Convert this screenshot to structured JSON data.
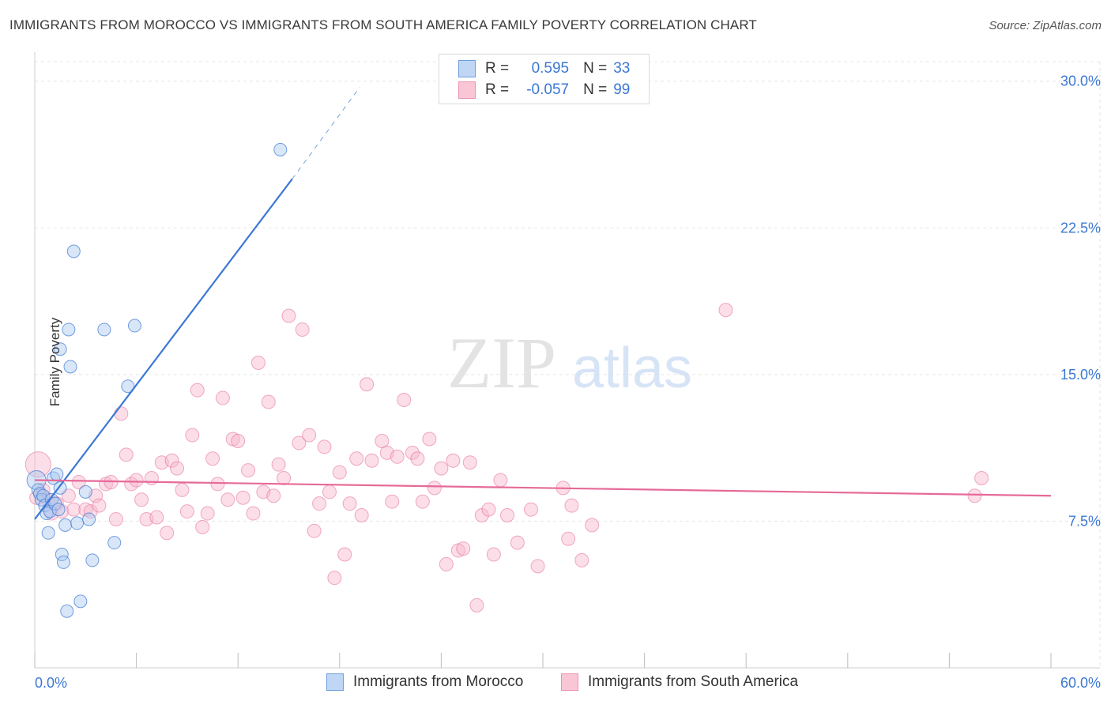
{
  "title": "IMMIGRANTS FROM MOROCCO VS IMMIGRANTS FROM SOUTH AMERICA FAMILY POVERTY CORRELATION CHART",
  "source": "Source: ZipAtlas.com",
  "watermark": {
    "zip": "ZIP",
    "atlas": "atlas"
  },
  "legend": {
    "r_label": "R =",
    "n_label": "N =",
    "morocco": {
      "r": "0.595",
      "n": "33"
    },
    "south_america": {
      "r": "-0.057",
      "n": "99"
    }
  },
  "chart_data": {
    "type": "scatter",
    "title": "IMMIGRANTS FROM MOROCCO VS IMMIGRANTS FROM SOUTH AMERICA FAMILY POVERTY CORRELATION CHART",
    "xlabel": "",
    "ylabel": "Family Poverty",
    "xlim": [
      0,
      60
    ],
    "ylim": [
      0,
      31
    ],
    "x_tick_labels": [
      "0.0%",
      "60.0%"
    ],
    "y_ticks": [
      7.5,
      15.0,
      22.5,
      30.0
    ],
    "y_tick_labels": [
      "7.5%",
      "15.0%",
      "22.5%",
      "30.0%"
    ],
    "grid": true,
    "legend_position": "bottom",
    "colors": {
      "morocco": "#3b78d4",
      "morocco_fill": "#a9c8f0",
      "south_america": "#e66a98",
      "south_america_fill": "#f7b6cb"
    },
    "series": [
      {
        "name": "Immigrants from Morocco",
        "trend": {
          "x": [
            0,
            15.2
          ],
          "y": [
            7.6,
            25.0
          ],
          "dashed_to": [
            19.2,
            29.7
          ]
        },
        "points": [
          [
            0.1,
            9.6
          ],
          [
            0.2,
            9.1
          ],
          [
            0.3,
            8.9
          ],
          [
            0.4,
            8.6
          ],
          [
            0.5,
            8.8
          ],
          [
            0.6,
            8.3
          ],
          [
            0.7,
            7.9
          ],
          [
            0.8,
            6.9
          ],
          [
            0.9,
            8.0
          ],
          [
            1.0,
            8.6
          ],
          [
            1.1,
            9.7
          ],
          [
            1.2,
            8.4
          ],
          [
            1.3,
            9.9
          ],
          [
            1.4,
            8.1
          ],
          [
            1.5,
            9.2
          ],
          [
            1.6,
            5.8
          ],
          [
            1.7,
            5.4
          ],
          [
            1.8,
            7.3
          ],
          [
            1.9,
            2.9
          ],
          [
            2.0,
            17.3
          ],
          [
            2.1,
            15.4
          ],
          [
            2.3,
            21.3
          ],
          [
            2.5,
            7.4
          ],
          [
            2.7,
            3.4
          ],
          [
            3.0,
            9.0
          ],
          [
            3.2,
            7.6
          ],
          [
            3.4,
            5.5
          ],
          [
            4.1,
            17.3
          ],
          [
            4.7,
            6.4
          ],
          [
            5.5,
            14.4
          ],
          [
            5.9,
            17.5
          ],
          [
            1.5,
            16.3
          ],
          [
            14.5,
            26.5
          ]
        ]
      },
      {
        "name": "Immigrants from South America",
        "trend": {
          "x": [
            0,
            60
          ],
          "y": [
            9.6,
            8.8
          ]
        },
        "points": [
          [
            0.2,
            10.4
          ],
          [
            0.5,
            9.1
          ],
          [
            0.8,
            8.6
          ],
          [
            1.0,
            7.9
          ],
          [
            1.3,
            8.4
          ],
          [
            1.6,
            8.0
          ],
          [
            2.0,
            8.8
          ],
          [
            2.3,
            8.1
          ],
          [
            2.6,
            9.5
          ],
          [
            3.0,
            8.1
          ],
          [
            3.3,
            8.0
          ],
          [
            3.6,
            8.8
          ],
          [
            3.8,
            8.3
          ],
          [
            4.2,
            9.4
          ],
          [
            4.5,
            9.5
          ],
          [
            4.8,
            7.6
          ],
          [
            5.1,
            13.0
          ],
          [
            5.4,
            10.9
          ],
          [
            5.7,
            9.4
          ],
          [
            6.0,
            9.6
          ],
          [
            6.3,
            8.6
          ],
          [
            6.6,
            7.6
          ],
          [
            6.9,
            9.7
          ],
          [
            7.2,
            7.7
          ],
          [
            7.5,
            10.5
          ],
          [
            7.8,
            6.9
          ],
          [
            8.1,
            10.6
          ],
          [
            8.4,
            10.2
          ],
          [
            8.7,
            9.1
          ],
          [
            9.0,
            8.0
          ],
          [
            9.3,
            11.9
          ],
          [
            9.6,
            14.2
          ],
          [
            9.9,
            7.2
          ],
          [
            10.2,
            7.9
          ],
          [
            10.5,
            10.7
          ],
          [
            10.8,
            9.4
          ],
          [
            11.1,
            13.8
          ],
          [
            11.4,
            8.6
          ],
          [
            11.7,
            11.7
          ],
          [
            12.0,
            11.6
          ],
          [
            12.3,
            8.7
          ],
          [
            12.6,
            10.1
          ],
          [
            12.9,
            7.9
          ],
          [
            13.2,
            15.6
          ],
          [
            13.5,
            9.0
          ],
          [
            13.8,
            13.6
          ],
          [
            14.1,
            8.8
          ],
          [
            14.4,
            10.4
          ],
          [
            14.7,
            9.7
          ],
          [
            15.0,
            18.0
          ],
          [
            15.6,
            11.5
          ],
          [
            15.8,
            17.3
          ],
          [
            16.2,
            11.9
          ],
          [
            16.5,
            7.0
          ],
          [
            16.8,
            8.4
          ],
          [
            17.1,
            11.3
          ],
          [
            17.4,
            9.0
          ],
          [
            17.7,
            4.6
          ],
          [
            18.0,
            10.0
          ],
          [
            18.3,
            5.8
          ],
          [
            18.6,
            8.4
          ],
          [
            19.0,
            10.7
          ],
          [
            19.3,
            7.8
          ],
          [
            19.6,
            14.5
          ],
          [
            19.9,
            10.6
          ],
          [
            20.5,
            11.6
          ],
          [
            20.8,
            11.0
          ],
          [
            21.1,
            8.5
          ],
          [
            21.4,
            10.8
          ],
          [
            21.8,
            13.7
          ],
          [
            22.3,
            11.0
          ],
          [
            22.6,
            10.7
          ],
          [
            22.9,
            8.5
          ],
          [
            23.3,
            11.7
          ],
          [
            23.6,
            9.2
          ],
          [
            24.0,
            10.2
          ],
          [
            24.3,
            5.3
          ],
          [
            24.7,
            10.6
          ],
          [
            25.0,
            6.0
          ],
          [
            25.3,
            6.1
          ],
          [
            25.7,
            10.5
          ],
          [
            26.1,
            3.2
          ],
          [
            26.4,
            7.8
          ],
          [
            26.8,
            8.1
          ],
          [
            27.1,
            5.8
          ],
          [
            27.5,
            9.6
          ],
          [
            27.9,
            7.8
          ],
          [
            28.5,
            6.4
          ],
          [
            29.3,
            8.1
          ],
          [
            29.7,
            5.2
          ],
          [
            31.2,
            9.2
          ],
          [
            31.5,
            6.6
          ],
          [
            31.7,
            8.3
          ],
          [
            32.3,
            5.5
          ],
          [
            32.9,
            7.3
          ],
          [
            40.8,
            18.3
          ],
          [
            55.5,
            8.8
          ],
          [
            55.9,
            9.7
          ],
          [
            0.1,
            8.7
          ]
        ]
      }
    ]
  },
  "bottom_legend": {
    "morocco": "Immigrants from Morocco",
    "south_america": "Immigrants from South America"
  }
}
